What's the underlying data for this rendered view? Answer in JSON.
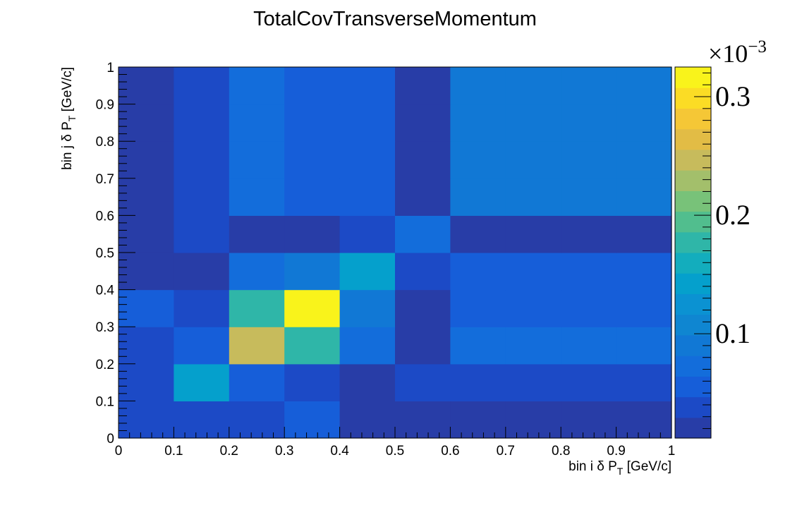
{
  "chart_data": {
    "type": "heatmap",
    "title": "TotalCovTransverseMomentum",
    "xlabel": {
      "main": "bin i δ P",
      "sub": "T",
      "unit": " [GeV/c]"
    },
    "ylabel": {
      "main": "bin j δ P",
      "sub": "T",
      "unit": " [GeV/c]"
    },
    "x_edges": [
      0,
      0.1,
      0.2,
      0.3,
      0.4,
      0.5,
      0.6,
      0.7,
      0.8,
      0.9,
      1.0
    ],
    "y_edges": [
      0,
      0.1,
      0.2,
      0.3,
      0.4,
      0.5,
      0.6,
      0.7,
      0.8,
      0.9,
      1.0
    ],
    "xlim": [
      0,
      1
    ],
    "ylim": [
      0,
      1
    ],
    "x_ticks": [
      "0",
      "0.1",
      "0.2",
      "0.3",
      "0.4",
      "0.5",
      "0.6",
      "0.7",
      "0.8",
      "0.9",
      "1"
    ],
    "y_ticks": [
      "0",
      "0.1",
      "0.2",
      "0.3",
      "0.4",
      "0.5",
      "0.6",
      "0.7",
      "0.8",
      "0.9",
      "1"
    ],
    "z_multiplier": "×10",
    "z_exponent": "−3",
    "z_ticks": [
      "0.1",
      "0.2",
      "0.3"
    ],
    "z_range": [
      0.012,
      0.325
    ],
    "z_unit_scale": 0.001,
    "palette": [
      "#283da7",
      "#1c4ac6",
      "#165ed9",
      "#136ddb",
      "#1178d5",
      "#0f86d1",
      "#0b92d2",
      "#05a0cc",
      "#13adbd",
      "#2fb6a8",
      "#51be8e",
      "#78c279",
      "#a3bf6b",
      "#c7bb5c",
      "#e2bc45",
      "#f5c736",
      "#fbdc25",
      "#f9f31b"
    ],
    "values_rows_bottom_to_top": [
      [
        0.04,
        0.04,
        0.04,
        0.058,
        0.02,
        0.02,
        0.02,
        0.02,
        0.02,
        0.02
      ],
      [
        0.04,
        0.15,
        0.058,
        0.045,
        0.02,
        0.04,
        0.04,
        0.04,
        0.04,
        0.04
      ],
      [
        0.04,
        0.06,
        0.24,
        0.17,
        0.07,
        0.02,
        0.075,
        0.075,
        0.075,
        0.075
      ],
      [
        0.06,
        0.04,
        0.17,
        0.325,
        0.095,
        0.02,
        0.05,
        0.05,
        0.05,
        0.05
      ],
      [
        0.02,
        0.02,
        0.07,
        0.095,
        0.15,
        0.04,
        0.05,
        0.05,
        0.05,
        0.05
      ],
      [
        0.02,
        0.045,
        0.02,
        0.02,
        0.04,
        0.075,
        0.02,
        0.02,
        0.02,
        0.02
      ],
      [
        0.02,
        0.045,
        0.07,
        0.055,
        0.055,
        0.02,
        0.095,
        0.095,
        0.095,
        0.095
      ],
      [
        0.02,
        0.045,
        0.07,
        0.055,
        0.055,
        0.02,
        0.095,
        0.095,
        0.095,
        0.095
      ],
      [
        0.02,
        0.045,
        0.07,
        0.055,
        0.055,
        0.02,
        0.095,
        0.095,
        0.095,
        0.095
      ],
      [
        0.02,
        0.045,
        0.07,
        0.055,
        0.055,
        0.02,
        0.095,
        0.095,
        0.095,
        0.095
      ]
    ]
  }
}
